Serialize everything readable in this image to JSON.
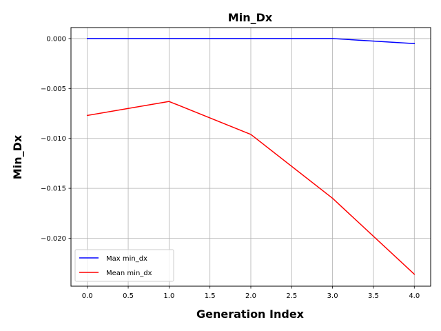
{
  "chart_data": {
    "type": "line",
    "title": "Min_Dx",
    "xlabel": "Generation Index",
    "ylabel": "Min_Dx",
    "x": [
      0,
      1,
      2,
      3,
      4
    ],
    "xlim": [
      -0.2,
      4.2
    ],
    "ylim": [
      -0.0248,
      0.0011
    ],
    "xticks": [
      0.0,
      0.5,
      1.0,
      1.5,
      2.0,
      2.5,
      3.0,
      3.5,
      4.0
    ],
    "xtick_labels": [
      "0.0",
      "0.5",
      "1.0",
      "1.5",
      "2.0",
      "2.5",
      "3.0",
      "3.5",
      "4.0"
    ],
    "yticks": [
      0.0,
      -0.005,
      -0.01,
      -0.015,
      -0.02
    ],
    "ytick_labels": [
      "0.000",
      "−0.005",
      "−0.010",
      "−0.015",
      "−0.020"
    ],
    "grid": true,
    "legend_position": "lower-left",
    "series": [
      {
        "name": "Max min_dx",
        "color": "#0000ff",
        "values": [
          0.0,
          0.0,
          0.0,
          0.0,
          -0.0005
        ]
      },
      {
        "name": "Mean min_dx",
        "color": "#ff0000",
        "values": [
          -0.0077,
          -0.0063,
          -0.0096,
          -0.016,
          -0.0236
        ]
      }
    ]
  }
}
